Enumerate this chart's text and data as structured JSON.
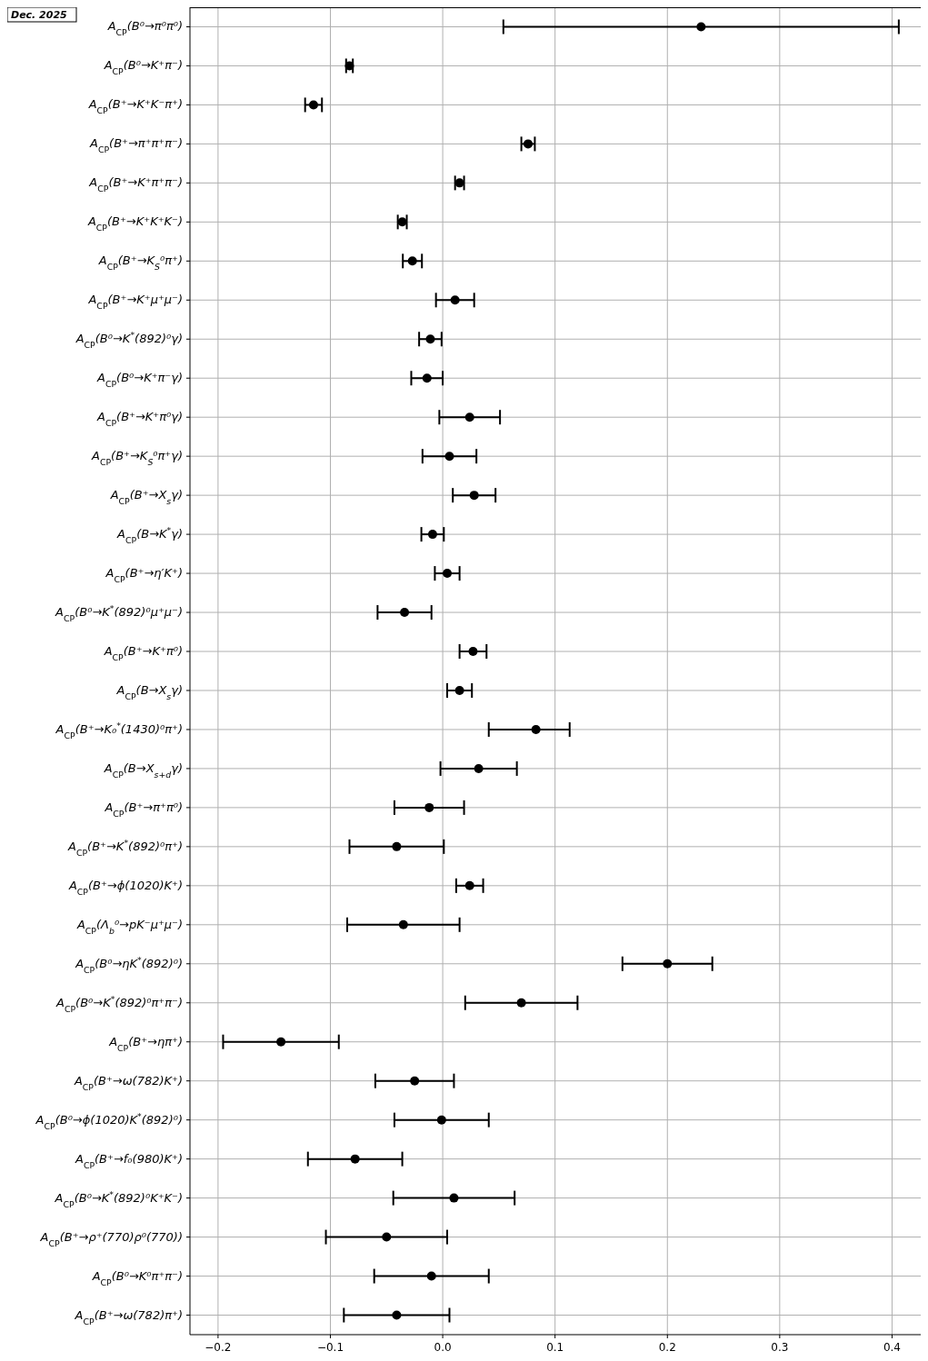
{
  "chart_data": {
    "type": "scatter",
    "orientation": "horizontal",
    "marker": "circle",
    "grid": true,
    "color": "#000000",
    "annotations": [
      "Dec. 2025"
    ],
    "categories": [
      "A$_{CP}$(B⁰→π⁰π⁰)",
      "A$_{CP}$(B⁰→K⁺π⁻)",
      "A$_{CP}$(B⁺→K⁺K⁻π⁺)",
      "A$_{CP}$(B⁺→π⁺π⁺π⁻)",
      "A$_{CP}$(B⁺→K⁺π⁺π⁻)",
      "A$_{CP}$(B⁺→K⁺K⁺K⁻)",
      "A$_{CP}$(B⁺→K$_{S}$⁰π⁺)",
      "A$_{CP}$(B⁺→K⁺μ⁺μ⁻)",
      "A$_{CP}$(B⁰→K$^{*}$(892)⁰γ)",
      "A$_{CP}$(B⁰→K⁺π⁻γ)",
      "A$_{CP}$(B⁺→K⁺π⁰γ)",
      "A$_{CP}$(B⁺→K$_{S}$⁰π⁺γ)",
      "A$_{CP}$(B⁺→X$_{s}$γ)",
      "A$_{CP}$(B→K$^{*}$γ)",
      "A$_{CP}$(B⁺→η′K⁺)",
      "A$_{CP}$(B⁰→K$^{*}$(892)⁰μ⁺μ⁻)",
      "A$_{CP}$(B⁺→K⁺π⁰)",
      "A$_{CP}$(B→X$_{s}$γ)",
      "A$_{CP}$(B⁺→K₀$^{*}$(1430)⁰π⁺)",
      "A$_{CP}$(B→X$_{s+d}$γ)",
      "A$_{CP}$(B⁺→π⁺π⁰)",
      "A$_{CP}$(B⁺→K$^{*}$(892)⁰π⁺)",
      "A$_{CP}$(B⁺→ϕ(1020)K⁺)",
      "A$_{CP}$(Λ$_{b}$⁰→pK⁻μ⁺μ⁻)",
      "A$_{CP}$(B⁰→ηK$^{*}$(892)⁰)",
      "A$_{CP}$(B⁰→K$^{*}$(892)⁰π⁺π⁻)",
      "A$_{CP}$(B⁺→ηπ⁺)",
      "A$_{CP}$(B⁺→ω(782)K⁺)",
      "A$_{CP}$(B⁰→ϕ(1020)K$^{*}$(892)⁰)",
      "A$_{CP}$(B⁺→f₀(980)K⁺)",
      "A$_{CP}$(B⁰→K$^{*}$(892)⁰K⁺K⁻)",
      "A$_{CP}$(B⁺→ρ⁺(770)ρ⁰(770))",
      "A$_{CP}$(B⁰→K⁰π⁺π⁻)",
      "A$_{CP}$(B⁺→ω(782)π⁺)"
    ],
    "values": [
      0.23,
      -0.083,
      -0.115,
      0.076,
      0.015,
      -0.036,
      -0.027,
      0.011,
      -0.011,
      -0.014,
      0.024,
      0.006,
      0.028,
      -0.009,
      0.004,
      -0.034,
      0.027,
      0.015,
      0.083,
      0.032,
      -0.012,
      -0.041,
      0.024,
      -0.035,
      0.2,
      0.07,
      -0.144,
      -0.025,
      -0.001,
      -0.078,
      0.01,
      -0.05,
      -0.01,
      -0.041
    ],
    "errors": [
      0.176,
      0.003,
      0.0075,
      0.006,
      0.004,
      0.004,
      0.0085,
      0.017,
      0.01,
      0.014,
      0.027,
      0.024,
      0.019,
      0.01,
      0.011,
      0.024,
      0.012,
      0.011,
      [
        0.041,
        0.113
      ],
      0.034,
      0.031,
      0.042,
      0.012,
      0.05,
      0.04,
      0.05,
      0.0515,
      0.035,
      0.042,
      0.042,
      0.054,
      0.054,
      0.051,
      0.047
    ],
    "xlim": [
      -0.225,
      0.432
    ],
    "xticks": [
      {
        "value": -0.2,
        "label": "−0.2"
      },
      {
        "value": -0.1,
        "label": "−0.1"
      },
      {
        "value": 0,
        "label": "0.0"
      },
      {
        "value": 0.1,
        "label": "0.1"
      },
      {
        "value": 0.2,
        "label": "0.2"
      },
      {
        "value": 0.3,
        "label": "0.3"
      },
      {
        "value": 0.4,
        "label": "0.4"
      }
    ]
  }
}
